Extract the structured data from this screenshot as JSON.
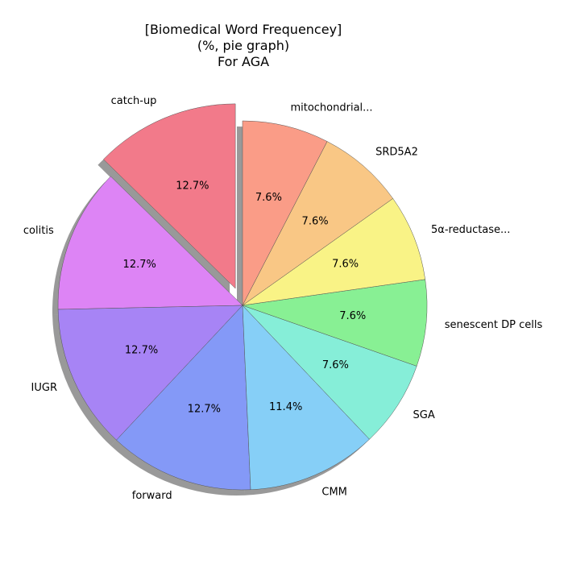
{
  "chart_data": {
    "type": "pie",
    "title_lines": [
      "[Biomedical Word Frequencey]",
      "(%, pie graph)",
      "For AGA"
    ],
    "categories": [
      "catch-up",
      "colitis",
      "IUGR",
      "forward",
      "CMM",
      "SGA",
      "senescent DP cells",
      "5α-reductase...",
      "SRD5A2",
      "mitochondrial..."
    ],
    "values": [
      12.7,
      12.7,
      12.7,
      12.7,
      11.4,
      7.6,
      7.6,
      7.6,
      7.6,
      7.6
    ],
    "value_labels": [
      "12.7%",
      "12.7%",
      "12.7%",
      "12.7%",
      "11.4%",
      "7.6%",
      "7.6%",
      "7.6%",
      "7.6%",
      "7.6%"
    ],
    "colors": [
      "#f27a8a",
      "#dd84f5",
      "#a784f5",
      "#8499f7",
      "#86cff7",
      "#86eed8",
      "#88f094",
      "#f9f386",
      "#f9c785",
      "#fa9c87"
    ],
    "exploded": [
      "catch-up"
    ],
    "shadow": true,
    "start_angle_deg": 90,
    "direction": "counterclockwise"
  }
}
